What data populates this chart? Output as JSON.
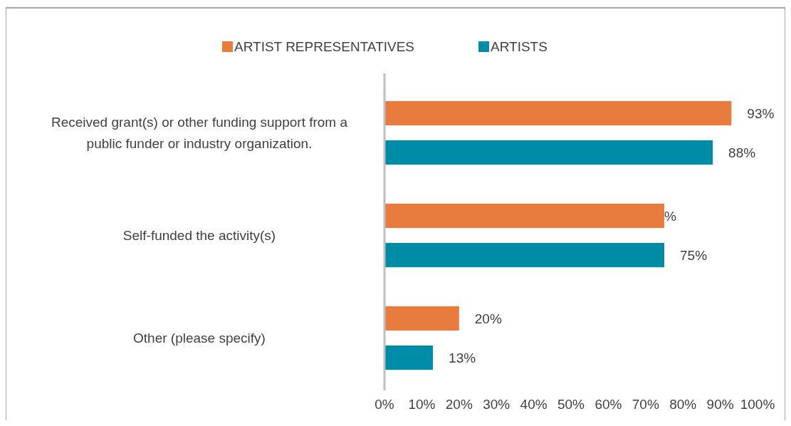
{
  "chart_data": {
    "type": "bar",
    "orientation": "horizontal",
    "categories": [
      "Received grant(s) or other funding support from a public funder or industry organization.",
      "Self-funded the activity(s)",
      "Other (please specify)"
    ],
    "series": [
      {
        "name": "ARTIST REPRESENTATIVES",
        "color": "#e87c3e",
        "values": [
          93,
          75,
          20
        ],
        "value_labels": [
          "93%",
          "%",
          "20%"
        ]
      },
      {
        "name": "ARTISTS",
        "color": "#008ba6",
        "values": [
          88,
          75,
          13
        ],
        "value_labels": [
          "88%",
          "75%",
          "13%"
        ]
      }
    ],
    "xlim": [
      0,
      100
    ],
    "xticks": [
      {
        "value": 0,
        "label": "0%"
      },
      {
        "value": 10,
        "label": "10%"
      },
      {
        "value": 20,
        "label": "20%"
      },
      {
        "value": 30,
        "label": "30%"
      },
      {
        "value": 40,
        "label": "40%"
      },
      {
        "value": 50,
        "label": "50%"
      },
      {
        "value": 60,
        "label": "60%"
      },
      {
        "value": 70,
        "label": "70%"
      },
      {
        "value": 80,
        "label": "80%"
      },
      {
        "value": 90,
        "label": "90%"
      },
      {
        "value": 100,
        "label": "100%"
      }
    ],
    "legend": "top",
    "grid": false
  }
}
